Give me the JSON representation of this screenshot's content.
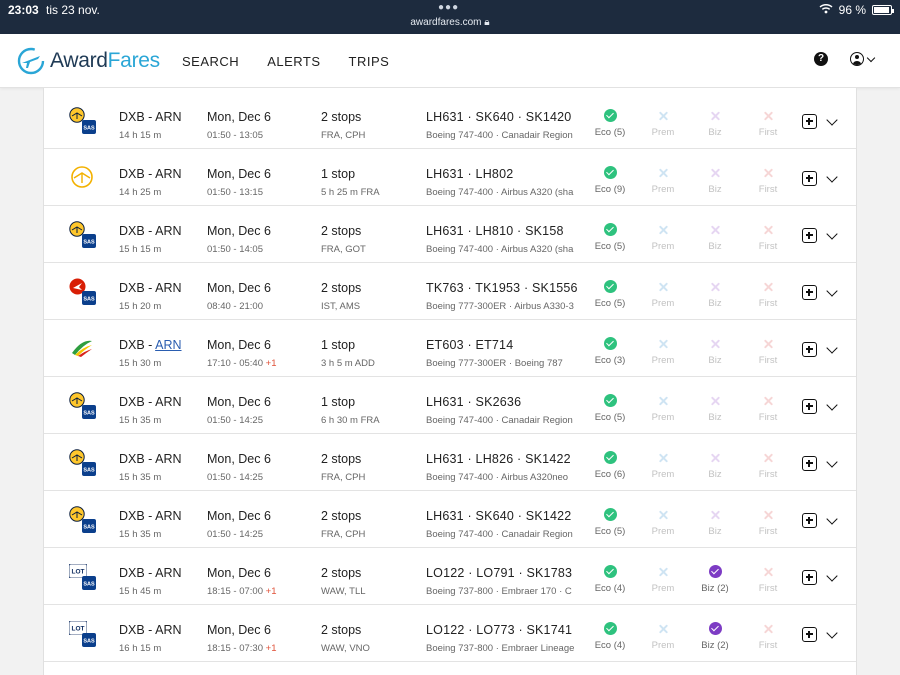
{
  "status": {
    "time": "23:03",
    "date": "tis 23 nov.",
    "url": "awardfares.com",
    "battery": "96 %"
  },
  "header": {
    "logo_main": "Award",
    "logo_accent": "Fares",
    "nav": [
      {
        "label": "SEARCH"
      },
      {
        "label": "ALERTS"
      },
      {
        "label": "TRIPS"
      }
    ]
  },
  "results": [
    {
      "airline": "lufthansa-sas",
      "route": "DXB - ARN",
      "origin": "DXB",
      "dest": "ARN",
      "dest_link": false,
      "duration": "14 h 15 m",
      "date": "Mon, Dec 6",
      "times": "01:50 - 13:05",
      "plus": "",
      "stops": "2 stops",
      "via": "FRA, CPH",
      "flights": "LH631 · SK640 · SK1420",
      "aircraft": "Boeing 747-400 · Canadair Region",
      "eco": {
        "avail": true,
        "label": "Eco (5)"
      },
      "prem": {
        "avail": false,
        "label": "Prem"
      },
      "biz": {
        "avail": false,
        "label": "Biz"
      },
      "first": {
        "avail": false,
        "label": "First"
      }
    },
    {
      "airline": "lufthansa",
      "route": "DXB - ARN",
      "origin": "DXB",
      "dest": "ARN",
      "dest_link": false,
      "duration": "14 h 25 m",
      "date": "Mon, Dec 6",
      "times": "01:50 - 13:15",
      "plus": "",
      "stops": "1 stop",
      "via": "5 h 25 m FRA",
      "flights": "LH631 · LH802",
      "aircraft": "Boeing 747-400 · Airbus A320 (sha",
      "eco": {
        "avail": true,
        "label": "Eco (9)"
      },
      "prem": {
        "avail": false,
        "label": "Prem"
      },
      "biz": {
        "avail": false,
        "label": "Biz"
      },
      "first": {
        "avail": false,
        "label": "First"
      }
    },
    {
      "airline": "lufthansa-sas",
      "route": "DXB - ARN",
      "origin": "DXB",
      "dest": "ARN",
      "dest_link": false,
      "duration": "15 h 15 m",
      "date": "Mon, Dec 6",
      "times": "01:50 - 14:05",
      "plus": "",
      "stops": "2 stops",
      "via": "FRA, GOT",
      "flights": "LH631 · LH810 · SK158",
      "aircraft": "Boeing 747-400 · Airbus A320 (sha",
      "eco": {
        "avail": true,
        "label": "Eco (5)"
      },
      "prem": {
        "avail": false,
        "label": "Prem"
      },
      "biz": {
        "avail": false,
        "label": "Biz"
      },
      "first": {
        "avail": false,
        "label": "First"
      }
    },
    {
      "airline": "turkish-sas",
      "route": "DXB - ARN",
      "origin": "DXB",
      "dest": "ARN",
      "dest_link": false,
      "duration": "15 h 20 m",
      "date": "Mon, Dec 6",
      "times": "08:40 - 21:00",
      "plus": "",
      "stops": "2 stops",
      "via": "IST, AMS",
      "flights": "TK763 · TK1953 · SK1556",
      "aircraft": "Boeing 777-300ER · Airbus A330-3",
      "eco": {
        "avail": true,
        "label": "Eco (5)"
      },
      "prem": {
        "avail": false,
        "label": "Prem"
      },
      "biz": {
        "avail": false,
        "label": "Biz"
      },
      "first": {
        "avail": false,
        "label": "First"
      }
    },
    {
      "airline": "ethiopian",
      "route": "DXB - ARN",
      "origin": "DXB",
      "dest": "ARN",
      "dest_link": true,
      "duration": "15 h 30 m",
      "date": "Mon, Dec 6",
      "times": "17:10 - 05:40",
      "plus": "+1",
      "stops": "1 stop",
      "via": "3 h 5 m ADD",
      "flights": "ET603 · ET714",
      "aircraft": "Boeing 777-300ER · Boeing 787",
      "eco": {
        "avail": true,
        "label": "Eco (3)"
      },
      "prem": {
        "avail": false,
        "label": "Prem"
      },
      "biz": {
        "avail": false,
        "label": "Biz"
      },
      "first": {
        "avail": false,
        "label": "First"
      }
    },
    {
      "airline": "lufthansa-sas",
      "route": "DXB - ARN",
      "origin": "DXB",
      "dest": "ARN",
      "dest_link": false,
      "duration": "15 h 35 m",
      "date": "Mon, Dec 6",
      "times": "01:50 - 14:25",
      "plus": "",
      "stops": "1 stop",
      "via": "6 h 30 m FRA",
      "flights": "LH631 · SK2636",
      "aircraft": "Boeing 747-400 · Canadair Region",
      "eco": {
        "avail": true,
        "label": "Eco (5)"
      },
      "prem": {
        "avail": false,
        "label": "Prem"
      },
      "biz": {
        "avail": false,
        "label": "Biz"
      },
      "first": {
        "avail": false,
        "label": "First"
      }
    },
    {
      "airline": "lufthansa-sas",
      "route": "DXB - ARN",
      "origin": "DXB",
      "dest": "ARN",
      "dest_link": false,
      "duration": "15 h 35 m",
      "date": "Mon, Dec 6",
      "times": "01:50 - 14:25",
      "plus": "",
      "stops": "2 stops",
      "via": "FRA, CPH",
      "flights": "LH631 · LH826 · SK1422",
      "aircraft": "Boeing 747-400 · Airbus A320neo",
      "eco": {
        "avail": true,
        "label": "Eco (6)"
      },
      "prem": {
        "avail": false,
        "label": "Prem"
      },
      "biz": {
        "avail": false,
        "label": "Biz"
      },
      "first": {
        "avail": false,
        "label": "First"
      }
    },
    {
      "airline": "lufthansa-sas",
      "route": "DXB - ARN",
      "origin": "DXB",
      "dest": "ARN",
      "dest_link": false,
      "duration": "15 h 35 m",
      "date": "Mon, Dec 6",
      "times": "01:50 - 14:25",
      "plus": "",
      "stops": "2 stops",
      "via": "FRA, CPH",
      "flights": "LH631 · SK640 · SK1422",
      "aircraft": "Boeing 747-400 · Canadair Region",
      "eco": {
        "avail": true,
        "label": "Eco (5)"
      },
      "prem": {
        "avail": false,
        "label": "Prem"
      },
      "biz": {
        "avail": false,
        "label": "Biz"
      },
      "first": {
        "avail": false,
        "label": "First"
      }
    },
    {
      "airline": "lot-sas",
      "route": "DXB - ARN",
      "origin": "DXB",
      "dest": "ARN",
      "dest_link": false,
      "duration": "15 h 45 m",
      "date": "Mon, Dec 6",
      "times": "18:15 - 07:00",
      "plus": "+1",
      "stops": "2 stops",
      "via": "WAW, TLL",
      "flights": "LO122 · LO791 · SK1783",
      "aircraft": "Boeing 737-800 · Embraer 170 · C",
      "eco": {
        "avail": true,
        "label": "Eco (4)"
      },
      "prem": {
        "avail": false,
        "label": "Prem"
      },
      "biz": {
        "avail": true,
        "label": "Biz (2)"
      },
      "first": {
        "avail": false,
        "label": "First"
      }
    },
    {
      "airline": "lot-sas",
      "route": "DXB - ARN",
      "origin": "DXB",
      "dest": "ARN",
      "dest_link": false,
      "duration": "16 h 15 m",
      "date": "Mon, Dec 6",
      "times": "18:15 - 07:30",
      "plus": "+1",
      "stops": "2 stops",
      "via": "WAW, VNO",
      "flights": "LO122 · LO773 · SK1741",
      "aircraft": "Boeing 737-800 · Embraer Lineage",
      "eco": {
        "avail": true,
        "label": "Eco (4)"
      },
      "prem": {
        "avail": false,
        "label": "Prem"
      },
      "biz": {
        "avail": true,
        "label": "Biz (2)"
      },
      "first": {
        "avail": false,
        "label": "First"
      }
    }
  ]
}
